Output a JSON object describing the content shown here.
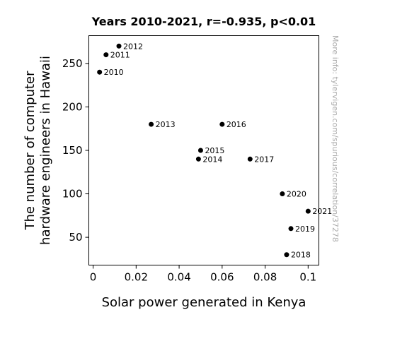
{
  "chart_data": {
    "type": "scatter",
    "title": "Years 2010-2021, r=-0.935, p<0.01",
    "xlabel": "Solar power generated in Kenya",
    "ylabel_lines": [
      "The number of computer",
      "hardware engineers in Hawaii"
    ],
    "xlim": [
      -0.002,
      0.105
    ],
    "ylim": [
      18,
      282
    ],
    "xticks": [
      {
        "value": 0,
        "label": "0"
      },
      {
        "value": 0.02,
        "label": "0.02"
      },
      {
        "value": 0.04,
        "label": "0.04"
      },
      {
        "value": 0.06,
        "label": "0.06"
      },
      {
        "value": 0.08,
        "label": "0.08"
      },
      {
        "value": 0.1,
        "label": "0.1"
      }
    ],
    "yticks": [
      {
        "value": 50,
        "label": "50"
      },
      {
        "value": 100,
        "label": "100"
      },
      {
        "value": 150,
        "label": "150"
      },
      {
        "value": 200,
        "label": "200"
      },
      {
        "value": 250,
        "label": "250"
      }
    ],
    "grid": false,
    "marker_color": "#000000",
    "points": [
      {
        "x": 0.003,
        "y": 240,
        "label": "2010"
      },
      {
        "x": 0.006,
        "y": 260,
        "label": "2011"
      },
      {
        "x": 0.012,
        "y": 270,
        "label": "2012"
      },
      {
        "x": 0.027,
        "y": 180,
        "label": "2013"
      },
      {
        "x": 0.049,
        "y": 140,
        "label": "2014"
      },
      {
        "x": 0.05,
        "y": 150,
        "label": "2015"
      },
      {
        "x": 0.06,
        "y": 180,
        "label": "2016"
      },
      {
        "x": 0.073,
        "y": 140,
        "label": "2017"
      },
      {
        "x": 0.09,
        "y": 30,
        "label": "2018"
      },
      {
        "x": 0.092,
        "y": 60,
        "label": "2019"
      },
      {
        "x": 0.088,
        "y": 100,
        "label": "2020"
      },
      {
        "x": 0.1,
        "y": 80,
        "label": "2021"
      }
    ]
  },
  "watermark": "More info: tylervigen.com/spurious/correlation/3727​8"
}
